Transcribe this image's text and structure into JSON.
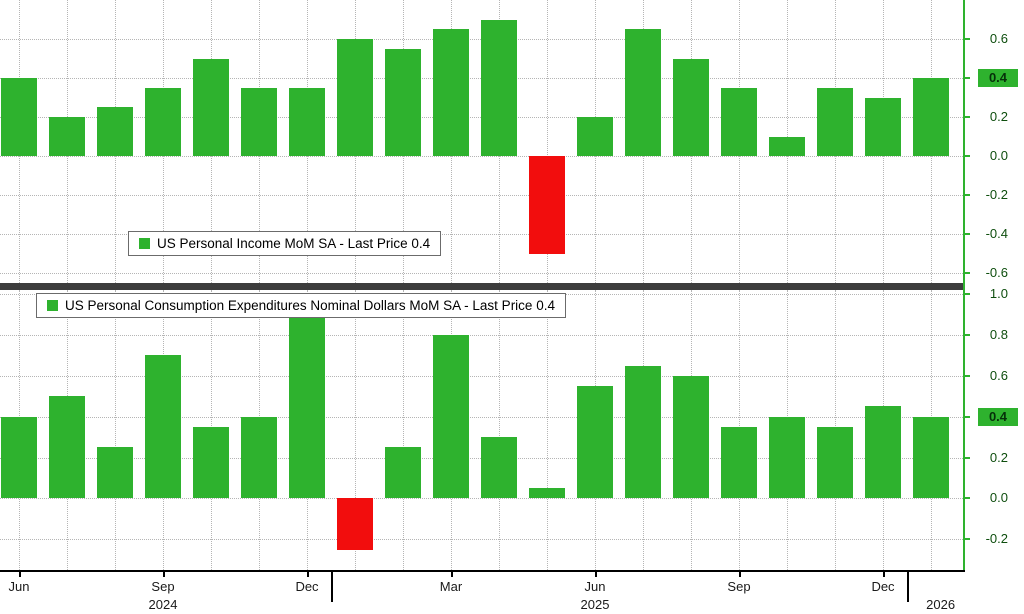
{
  "colors": {
    "background": "#ffffff",
    "bar_positive": "#2eb22e",
    "bar_negative": "#f20d0d",
    "axis_line": "#2eb22e",
    "grid_line": "#b5b5b5",
    "y_tick_text": "#0e4e0e",
    "x_tick_text": "#1a1a1a",
    "panel_divider": "#3d3d3d",
    "last_price_badge_bg": "#2eb22e",
    "last_price_badge_text": "#06300a",
    "legend_border": "#6b6b6b"
  },
  "x_axis": {
    "tick_labels": [
      {
        "label": "Jun",
        "index": 0
      },
      {
        "label": "Sep",
        "index": 3
      },
      {
        "label": "Dec",
        "index": 6
      },
      {
        "label": "Mar",
        "index": 9
      },
      {
        "label": "Jun",
        "index": 12
      },
      {
        "label": "Sep",
        "index": 15
      },
      {
        "label": "Dec",
        "index": 18
      }
    ],
    "year_labels": [
      {
        "label": "2024",
        "anchor_index": 3
      },
      {
        "label": "2025",
        "anchor_index": 12
      },
      {
        "label": "2026",
        "anchor_index": 19.2
      }
    ],
    "year_divider_indices": [
      6.5,
      18.5
    ]
  },
  "chart_data": [
    {
      "type": "bar",
      "panel": "top",
      "title": "US Personal Income MoM SA",
      "legend": {
        "label": "US Personal Income MoM SA - Last Price 0.4",
        "position": "inside-bottom-left"
      },
      "categories": [
        "Jun 2024",
        "Jul 2024",
        "Aug 2024",
        "Sep 2024",
        "Oct 2024",
        "Nov 2024",
        "Dec 2024",
        "Jan 2025",
        "Feb 2025",
        "Mar 2025",
        "Apr 2025",
        "May 2025",
        "Jun 2025",
        "Jul 2025",
        "Aug 2025",
        "Sep 2025",
        "Oct 2025",
        "Nov 2025",
        "Dec 2025",
        "Jan 2026"
      ],
      "values": [
        0.4,
        0.2,
        0.25,
        0.35,
        0.5,
        0.35,
        0.35,
        0.6,
        0.55,
        0.65,
        0.7,
        -0.5,
        0.2,
        0.65,
        0.5,
        0.35,
        0.1,
        0.35,
        0.3,
        0.4
      ],
      "ylim": [
        -0.65,
        0.8
      ],
      "yticks": [
        0.6,
        0.4,
        0.2,
        0.0,
        -0.2,
        -0.4,
        -0.6
      ],
      "last_price": 0.4,
      "grid": "dotted",
      "axis_side": "right",
      "negative_color_rule": "values below 0 shown red"
    },
    {
      "type": "bar",
      "panel": "bottom",
      "title": "US Personal Consumption Expenditures Nominal Dollars MoM SA",
      "legend": {
        "label": "US Personal Consumption Expenditures Nominal Dollars MoM SA - Last Price 0.4",
        "position": "inside-top-left"
      },
      "categories": [
        "Jun 2024",
        "Jul 2024",
        "Aug 2024",
        "Sep 2024",
        "Oct 2024",
        "Nov 2024",
        "Dec 2024",
        "Jan 2025",
        "Feb 2025",
        "Mar 2025",
        "Apr 2025",
        "May 2025",
        "Jun 2025",
        "Jul 2025",
        "Aug 2025",
        "Sep 2025",
        "Oct 2025",
        "Nov 2025",
        "Dec 2025",
        "Jan 2026"
      ],
      "values": [
        0.4,
        0.5,
        0.25,
        0.7,
        0.35,
        0.4,
        1.0,
        -0.25,
        0.25,
        0.8,
        0.3,
        0.05,
        0.55,
        0.65,
        0.6,
        0.35,
        0.4,
        0.35,
        0.45,
        0.4
      ],
      "ylim": [
        -0.35,
        1.02
      ],
      "yticks": [
        1.0,
        0.8,
        0.6,
        0.4,
        0.2,
        0.0,
        -0.2
      ],
      "last_price": 0.4,
      "grid": "dotted",
      "axis_side": "right",
      "negative_color_rule": "values below 0 shown red"
    }
  ]
}
